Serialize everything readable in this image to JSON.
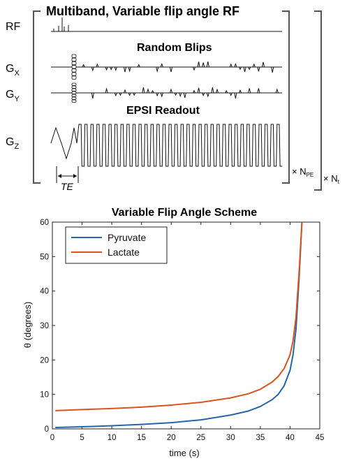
{
  "diagram": {
    "title": "Multiband, Variable flip angle RF",
    "labels": {
      "rf": "RF",
      "gx_main": "G",
      "gx_sub": "X",
      "gy_main": "G",
      "gy_sub": "Y",
      "gz_main": "G",
      "gz_sub": "Z"
    },
    "random_blips": "Random Blips",
    "epsi_readout": "EPSI Readout",
    "te": "TE",
    "repeat_pe": {
      "times": "× N",
      "sub": "PE"
    },
    "repeat_t": {
      "times": "× N",
      "sub": "t"
    }
  },
  "chart_data": {
    "type": "line",
    "title": "Variable Flip Angle Scheme",
    "xlabel": "time (s)",
    "ylabel": "θ (degrees)",
    "xlim": [
      0,
      45
    ],
    "ylim": [
      0,
      60
    ],
    "xticks": [
      0,
      5,
      10,
      15,
      20,
      25,
      30,
      35,
      40,
      45
    ],
    "yticks": [
      0,
      10,
      20,
      30,
      40,
      50,
      60
    ],
    "legend_position": "top-left",
    "grid": false,
    "series": [
      {
        "name": "Pyruvate",
        "color": "#2466a8",
        "x": [
          0.5,
          5,
          10,
          15,
          20,
          25,
          30,
          33,
          35,
          37,
          38,
          39,
          40,
          40.5,
          41,
          41.5,
          42
        ],
        "y": [
          0.4,
          0.6,
          0.9,
          1.3,
          1.8,
          2.6,
          4.0,
          5.2,
          6.5,
          8.5,
          10.0,
          12.5,
          17.0,
          21.5,
          29.0,
          43.0,
          60.0
        ]
      },
      {
        "name": "Lactate",
        "color": "#d9541e",
        "x": [
          0.5,
          5,
          10,
          15,
          20,
          25,
          30,
          33,
          35,
          37,
          38,
          39,
          40,
          40.5,
          41,
          41.5,
          42
        ],
        "y": [
          5.3,
          5.6,
          5.9,
          6.3,
          6.9,
          7.7,
          9.0,
          10.2,
          11.5,
          13.6,
          15.2,
          17.5,
          21.5,
          25.5,
          32.5,
          45.0,
          60.0
        ]
      }
    ]
  }
}
